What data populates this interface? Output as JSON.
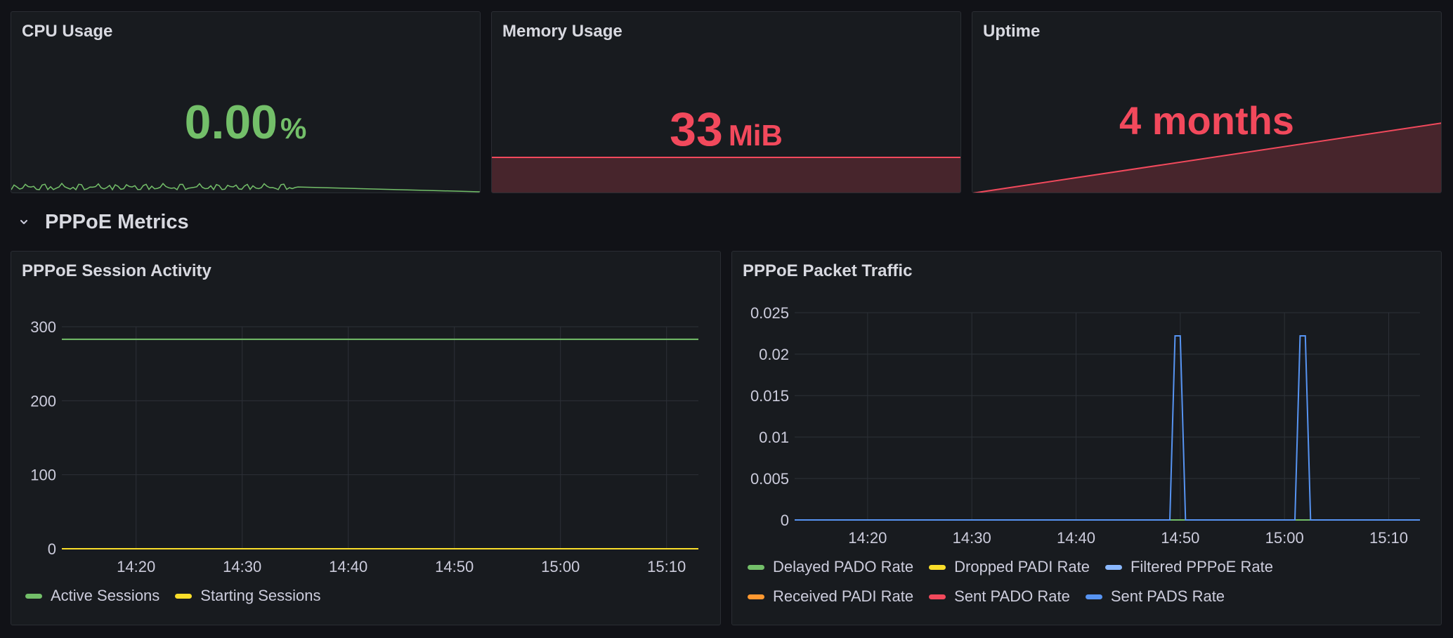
{
  "stats": {
    "cpu": {
      "title": "CPU Usage",
      "value": "0.00",
      "unit": "%",
      "color": "#73bf69"
    },
    "memory": {
      "title": "Memory Usage",
      "value": "33",
      "unit": "MiB",
      "color": "#f2495c"
    },
    "uptime": {
      "title": "Uptime",
      "value": "4 months",
      "color": "#f2495c"
    }
  },
  "row": {
    "title": "PPPoE Metrics",
    "icon": "chevron-down-icon"
  },
  "session_panel": {
    "title": "PPPoE Session Activity",
    "legend": [
      {
        "name": "Active Sessions",
        "color": "#73bf69"
      },
      {
        "name": "Starting Sessions",
        "color": "#fade2a"
      }
    ]
  },
  "traffic_panel": {
    "title": "PPPoE Packet Traffic",
    "legend": [
      {
        "name": "Delayed PADO Rate",
        "color": "#73bf69"
      },
      {
        "name": "Dropped PADI Rate",
        "color": "#fade2a"
      },
      {
        "name": "Filtered PPPoE Rate",
        "color": "#8ab8ff"
      },
      {
        "name": "Received PADI Rate",
        "color": "#ff9830"
      },
      {
        "name": "Sent PADO Rate",
        "color": "#f2495c"
      },
      {
        "name": "Sent PADS Rate",
        "color": "#5794f2"
      }
    ]
  },
  "chart_data": [
    {
      "type": "line",
      "title": "PPPoE Session Activity",
      "x_ticks": [
        "14:20",
        "14:30",
        "14:40",
        "14:50",
        "15:00",
        "15:10"
      ],
      "y_ticks": [
        "0",
        "100",
        "200",
        "300"
      ],
      "ylim": [
        0,
        300
      ],
      "xlim": [
        "14:13",
        "15:13"
      ],
      "grid": true,
      "legend_position": "bottom-left",
      "series": [
        {
          "name": "Active Sessions",
          "color": "#73bf69",
          "x": [
            "14:13",
            "14:50",
            "14:51",
            "15:02",
            "15:03",
            "15:13"
          ],
          "values": [
            283,
            283,
            283,
            283,
            283,
            283
          ]
        },
        {
          "name": "Starting Sessions",
          "color": "#fade2a",
          "x": [
            "14:13",
            "15:13"
          ],
          "values": [
            0,
            0
          ]
        }
      ]
    },
    {
      "type": "line",
      "title": "PPPoE Packet Traffic",
      "x_ticks": [
        "14:20",
        "14:30",
        "14:40",
        "14:50",
        "15:00",
        "15:10"
      ],
      "y_ticks": [
        "0",
        "0.005",
        "0.01",
        "0.015",
        "0.02",
        "0.025"
      ],
      "ylim": [
        0,
        0.025
      ],
      "xlim": [
        "14:13",
        "15:13"
      ],
      "grid": true,
      "legend_position": "bottom-left",
      "series": [
        {
          "name": "Sent PADS Rate",
          "color": "#5794f2",
          "x": [
            "14:13",
            "14:49",
            "14:49.5",
            "14:50",
            "14:50.5",
            "15:01",
            "15:01.5",
            "15:02",
            "15:02.5",
            "15:13"
          ],
          "values": [
            0,
            0,
            0.0222,
            0.0222,
            0,
            0,
            0.0222,
            0.0222,
            0,
            0
          ]
        },
        {
          "name": "Delayed PADO Rate",
          "color": "#73bf69",
          "x": [
            "14:13",
            "15:13"
          ],
          "values": [
            0,
            0
          ]
        },
        {
          "name": "Dropped PADI Rate",
          "color": "#fade2a",
          "x": [
            "14:13",
            "15:13"
          ],
          "values": [
            0,
            0
          ]
        },
        {
          "name": "Filtered PPPoE Rate",
          "color": "#8ab8ff",
          "x": [
            "14:13",
            "15:13"
          ],
          "values": [
            0,
            0
          ]
        },
        {
          "name": "Received PADI Rate",
          "color": "#ff9830",
          "x": [
            "14:13",
            "15:13"
          ],
          "values": [
            0,
            0
          ]
        },
        {
          "name": "Sent PADO Rate",
          "color": "#f2495c",
          "x": [
            "14:13",
            "15:13"
          ],
          "values": [
            0,
            0
          ]
        }
      ]
    }
  ]
}
